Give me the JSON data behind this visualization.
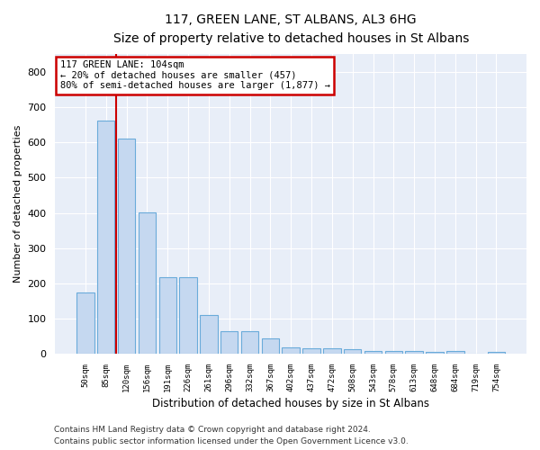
{
  "title": "117, GREEN LANE, ST ALBANS, AL3 6HG",
  "subtitle": "Size of property relative to detached houses in St Albans",
  "xlabel": "Distribution of detached houses by size in St Albans",
  "ylabel": "Number of detached properties",
  "categories": [
    "50sqm",
    "85sqm",
    "120sqm",
    "156sqm",
    "191sqm",
    "226sqm",
    "261sqm",
    "296sqm",
    "332sqm",
    "367sqm",
    "402sqm",
    "437sqm",
    "472sqm",
    "508sqm",
    "543sqm",
    "578sqm",
    "613sqm",
    "648sqm",
    "684sqm",
    "719sqm",
    "754sqm"
  ],
  "values": [
    175,
    662,
    610,
    402,
    218,
    218,
    110,
    63,
    63,
    43,
    17,
    16,
    15,
    13,
    7,
    7,
    7,
    6,
    7,
    0,
    6
  ],
  "bar_color": "#c5d8f0",
  "bar_edge_color": "#6aabda",
  "bg_color": "#e8eef8",
  "grid_color": "#ffffff",
  "vline_x": 1.5,
  "vline_color": "#cc0000",
  "annotation_line1": "117 GREEN LANE: 104sqm",
  "annotation_line2": "← 20% of detached houses are smaller (457)",
  "annotation_line3": "80% of semi-detached houses are larger (1,877) →",
  "annotation_box_color": "#cc0000",
  "ylim": [
    0,
    850
  ],
  "yticks": [
    0,
    100,
    200,
    300,
    400,
    500,
    600,
    700,
    800
  ],
  "footnote1": "Contains HM Land Registry data © Crown copyright and database right 2024.",
  "footnote2": "Contains public sector information licensed under the Open Government Licence v3.0."
}
